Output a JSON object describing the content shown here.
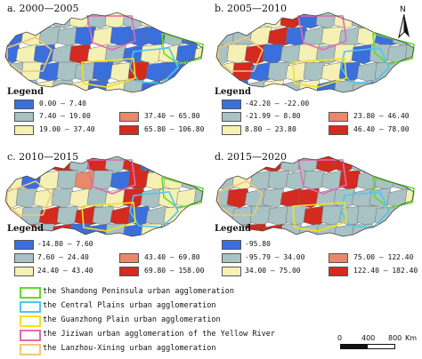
{
  "panels": [
    {
      "title": "a. 2000—2005",
      "legend_title": "Legend",
      "classes": [
        {
          "label": "0.00 — 7.40",
          "color": "#3a6fdc"
        },
        {
          "label": "7.40 — 19.00",
          "color": "#a9c2c4"
        },
        {
          "label": "19.00 — 37.40",
          "color": "#f5f0b4"
        },
        {
          "label": "37.40 — 65.80",
          "color": "#e9886a"
        },
        {
          "label": "65.80 — 106.80",
          "color": "#d42a1f"
        }
      ]
    },
    {
      "title": "b. 2005—2010",
      "legend_title": "Legend",
      "classes": [
        {
          "label": "-42.20 — -22.00",
          "color": "#3a6fdc"
        },
        {
          "label": "-21.99 — 8.80",
          "color": "#a9c2c4"
        },
        {
          "label": "8.80 — 23.80",
          "color": "#f5f0b4"
        },
        {
          "label": "23.80 — 46.40",
          "color": "#e9886a"
        },
        {
          "label": "46.40 — 78.00",
          "color": "#d42a1f"
        }
      ]
    },
    {
      "title": "c. 2010—2015",
      "legend_title": "Legend",
      "classes": [
        {
          "label": "-14.80 — 7.60",
          "color": "#3a6fdc"
        },
        {
          "label": "7.60 — 24.40",
          "color": "#a9c2c4"
        },
        {
          "label": "24.40 — 43.40",
          "color": "#f5f0b4"
        },
        {
          "label": "43.40 — 69.80",
          "color": "#e9886a"
        },
        {
          "label": "69.80 — 158.00",
          "color": "#d42a1f"
        }
      ]
    },
    {
      "title": "d. 2015—2020",
      "legend_title": "Legend",
      "classes": [
        {
          "label": "-95.80",
          "color": "#3a6fdc"
        },
        {
          "label": "-95.79 — 34.00",
          "color": "#a9c2c4"
        },
        {
          "label": "34.00 — 75.00",
          "color": "#f5f0b4"
        },
        {
          "label": "75.00 — 122.40",
          "color": "#e9886a"
        },
        {
          "label": "122.40 — 182.40",
          "color": "#d42a1f"
        }
      ]
    }
  ],
  "agglomerations": [
    {
      "label": "the Shandong Peninsula urban agglomeration",
      "color": "#5fdc2a"
    },
    {
      "label": "the Central Plains urban agglomeration",
      "color": "#4fc6ef"
    },
    {
      "label": "the Guanzhong Plain urban agglomeration",
      "color": "#f2e21c"
    },
    {
      "label": "the Jiziwan urban agglomeration of the Yellow River",
      "color": "#e36ab0"
    },
    {
      "label": "the Lanzhou-Xining urban agglomeration",
      "color": "#f0c878"
    }
  ],
  "north_label": "N",
  "scale": {
    "ticks": [
      "0",
      "400",
      "800"
    ],
    "unit": "Km"
  }
}
